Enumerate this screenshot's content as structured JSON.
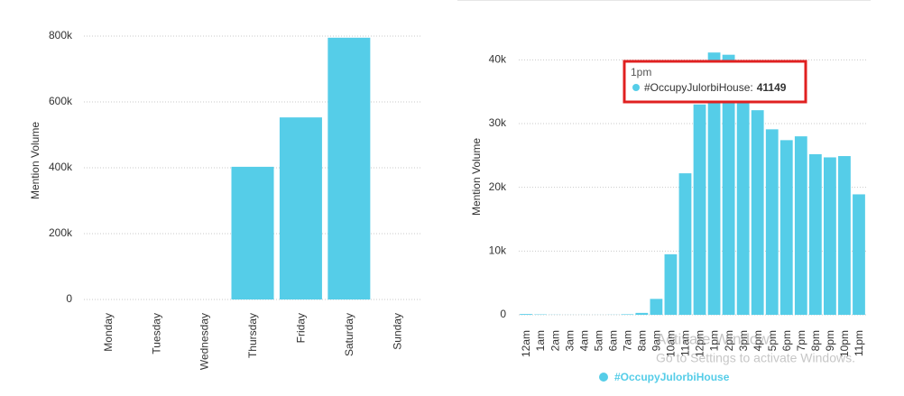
{
  "chart_data": [
    {
      "type": "bar",
      "y_label": "Mention Volume",
      "categories": [
        "Monday",
        "Tuesday",
        "Wednesday",
        "Thursday",
        "Friday",
        "Saturday",
        "Sunday"
      ],
      "values": [
        0,
        0,
        0,
        403000,
        553000,
        795000,
        0
      ],
      "color": "#55cde8",
      "ylim": [
        0,
        800000
      ],
      "yticks": [
        0,
        {
          "value": 200000,
          "label": "200k"
        },
        {
          "value": 400000,
          "label": "400k"
        },
        {
          "value": 600000,
          "label": "600k"
        },
        {
          "value": 800000,
          "label": "800k"
        }
      ],
      "grid": true
    },
    {
      "type": "bar",
      "y_label": "Mention Volume",
      "categories": [
        "12am",
        "1am",
        "2am",
        "3am",
        "4am",
        "5am",
        "6am",
        "7am",
        "8am",
        "9am",
        "10am",
        "11am",
        "12pm",
        "1pm",
        "2pm",
        "3pm",
        "4pm",
        "5pm",
        "6pm",
        "7pm",
        "8pm",
        "9pm",
        "10pm",
        "11pm"
      ],
      "series": [
        {
          "name": "#OccupyJulorbiHouse",
          "color": "#55cde8",
          "values": [
            120,
            60,
            20,
            10,
            10,
            10,
            20,
            80,
            300,
            2500,
            9500,
            22200,
            33000,
            41149,
            40800,
            33500,
            32100,
            29100,
            27400,
            28000,
            25200,
            24700,
            24900,
            18900
          ]
        }
      ],
      "ylim": [
        0,
        45000
      ],
      "yticks": [
        0,
        {
          "value": 10000,
          "label": "10k"
        },
        {
          "value": 20000,
          "label": "20k"
        },
        {
          "value": 30000,
          "label": "30k"
        },
        {
          "value": 40000,
          "label": "40k"
        }
      ],
      "grid": true,
      "tooltip": {
        "title": "1pm",
        "label": "#OccupyJulorbiHouse:",
        "value": 41149
      }
    }
  ],
  "watermark": {
    "line1": "Activate Windows",
    "line2": "Go to Settings to activate Windows."
  }
}
